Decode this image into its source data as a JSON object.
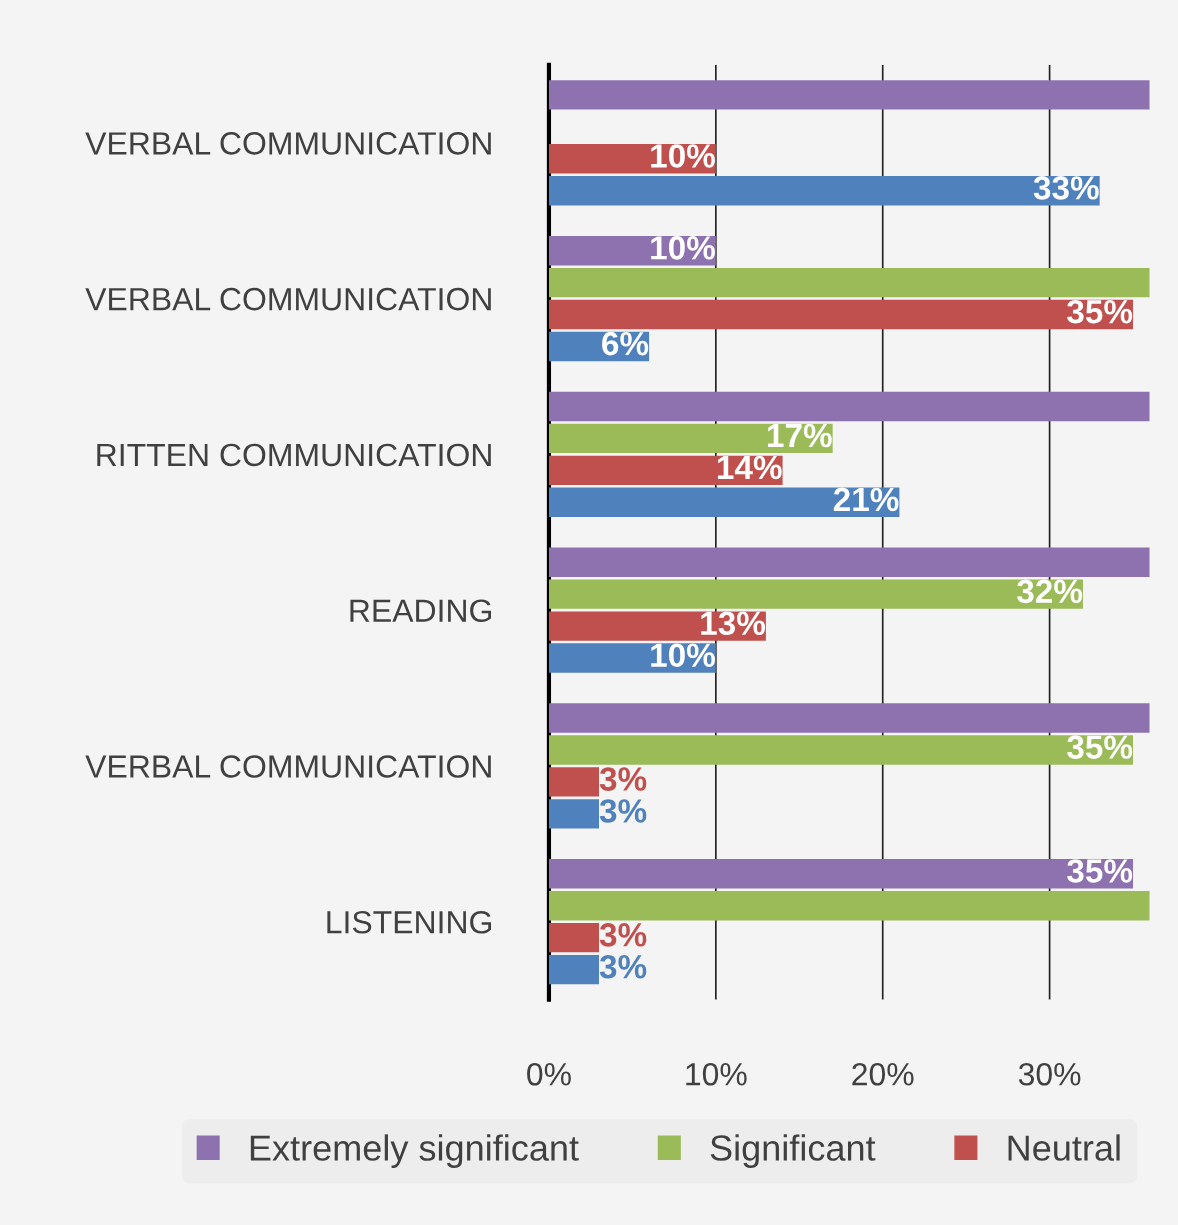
{
  "chart_data": {
    "type": "bar",
    "orientation": "horizontal",
    "categories": [
      "VERBAL COMMUNICATION",
      "VERBAL COMMUNICATION",
      "RITTEN COMMUNICATION",
      "READING",
      "VERBAL COMMUNICATION",
      "LISTENING"
    ],
    "series": [
      {
        "name": "Extremely significant",
        "color": "#8e72b0",
        "values": [
          36,
          10,
          36,
          36,
          36,
          35
        ],
        "value_labels": [
          null,
          "10%",
          null,
          null,
          null,
          "35%"
        ]
      },
      {
        "name": "Significant",
        "color": "#9bbb59",
        "values": [
          null,
          36,
          17,
          32,
          35,
          36
        ],
        "value_labels": [
          null,
          null,
          "17%",
          "32%",
          "35%",
          null
        ]
      },
      {
        "name": "Neutral",
        "color": "#c0504d",
        "values": [
          10,
          35,
          14,
          13,
          3,
          3
        ],
        "value_labels": [
          "10%",
          "35%",
          "14%",
          "13%",
          "3%",
          "3%"
        ]
      },
      {
        "color": "#4f81bd",
        "values": [
          33,
          6,
          21,
          10,
          3,
          3
        ],
        "value_labels": [
          "33%",
          "6%",
          "21%",
          "10%",
          "3%",
          "3%"
        ]
      }
    ],
    "xlim": [
      0,
      36
    ],
    "xticks": [
      {
        "value": 0,
        "label": "0%"
      },
      {
        "value": 10,
        "label": "10%"
      },
      {
        "value": 20,
        "label": "20%"
      },
      {
        "value": 30,
        "label": "30%"
      }
    ],
    "grid": "x",
    "legend": "bottom"
  }
}
